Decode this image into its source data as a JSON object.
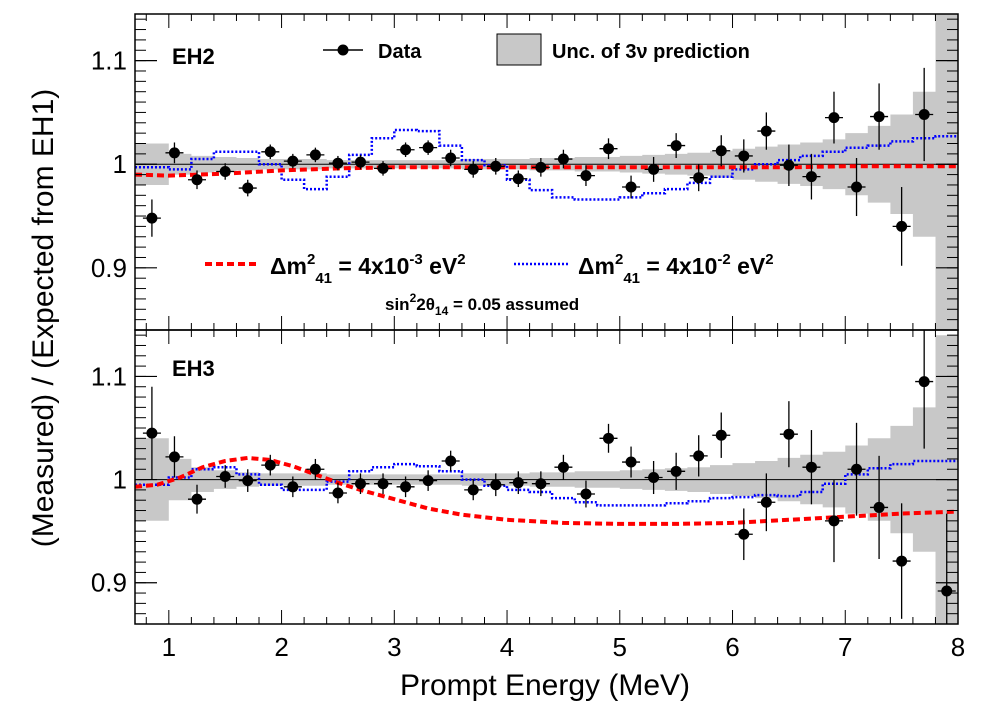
{
  "chart_data": {
    "type": "scatter",
    "xlabel": "Prompt Energy (MeV)",
    "ylabel": "(Measured) / (Expected from EH1)",
    "xlim": [
      0.7,
      8.0
    ],
    "x_ticks": [
      1,
      2,
      3,
      4,
      5,
      6,
      7,
      8
    ],
    "x_tick_labels": [
      "1",
      "2",
      "3",
      "4",
      "5",
      "6",
      "7",
      "8"
    ],
    "y_ticks": [
      0.9,
      1.0,
      1.1
    ],
    "y_tick_labels": [
      "0.9",
      "1",
      "1.1"
    ],
    "legend": {
      "data_label": "Data",
      "band_label": "Unc. of 3ν prediction",
      "red_prefix": "Δm",
      "red_sup": "2",
      "red_sub": "41",
      "red_mid": " = 4x10",
      "red_exp": "-3",
      "red_suffix": " eV",
      "red_suffix_sup": "2",
      "blue_prefix": "Δm",
      "blue_sup": "2",
      "blue_sub": "41",
      "blue_mid": " = 4x10",
      "blue_exp": "-2",
      "blue_suffix": " eV",
      "blue_suffix_sup": "2",
      "note_pre": "sin",
      "note_sup": "2",
      "note_mid": "2θ",
      "note_sub": "14",
      "note_post": " = 0.05 assumed"
    },
    "colors": {
      "data": "#000000",
      "band": "#c8c8c8",
      "red": "#ff0000",
      "blue": "#0000ff"
    },
    "panels": [
      {
        "label": "EH2",
        "ylim": [
          0.84,
          1.145
        ],
        "data": {
          "x": [
            0.85,
            1.05,
            1.25,
            1.5,
            1.7,
            1.9,
            2.1,
            2.3,
            2.5,
            2.7,
            2.9,
            3.1,
            3.3,
            3.5,
            3.7,
            3.9,
            4.1,
            4.3,
            4.5,
            4.7,
            4.9,
            5.1,
            5.3,
            5.5,
            5.7,
            5.9,
            6.1,
            6.3,
            6.5,
            6.7,
            6.9,
            7.1,
            7.3,
            7.5,
            7.7
          ],
          "y": [
            0.948,
            1.011,
            0.985,
            0.993,
            0.977,
            1.012,
            1.003,
            1.009,
            1.001,
            1.002,
            0.996,
            1.014,
            1.016,
            1.006,
            0.995,
            0.998,
            0.986,
            0.997,
            1.005,
            0.989,
            1.015,
            0.978,
            0.995,
            1.018,
            0.987,
            1.013,
            1.008,
            1.032,
            0.999,
            0.988,
            1.045,
            0.978,
            1.046,
            0.94,
            1.048
          ],
          "yerr": [
            0.018,
            0.01,
            0.009,
            0.008,
            0.008,
            0.007,
            0.007,
            0.007,
            0.007,
            0.007,
            0.007,
            0.007,
            0.007,
            0.008,
            0.008,
            0.008,
            0.008,
            0.009,
            0.009,
            0.01,
            0.01,
            0.011,
            0.012,
            0.012,
            0.013,
            0.015,
            0.016,
            0.018,
            0.02,
            0.022,
            0.025,
            0.028,
            0.032,
            0.038,
            0.045
          ]
        },
        "band": {
          "edges": [
            0.7,
            0.85,
            1.0,
            1.2,
            1.4,
            1.6,
            1.8,
            2.0,
            2.2,
            2.4,
            2.6,
            2.8,
            3.0,
            3.2,
            3.4,
            3.6,
            3.8,
            4.0,
            4.2,
            4.4,
            4.6,
            4.8,
            5.0,
            5.2,
            5.4,
            5.6,
            5.8,
            6.0,
            6.2,
            6.4,
            6.6,
            6.8,
            7.0,
            7.2,
            7.4,
            7.6,
            7.8,
            8.0
          ],
          "halfwidth": [
            0.02,
            0.02,
            0.01,
            0.008,
            0.007,
            0.006,
            0.005,
            0.005,
            0.005,
            0.004,
            0.004,
            0.004,
            0.004,
            0.004,
            0.004,
            0.005,
            0.005,
            0.005,
            0.006,
            0.006,
            0.007,
            0.007,
            0.008,
            0.009,
            0.01,
            0.011,
            0.013,
            0.015,
            0.017,
            0.019,
            0.021,
            0.024,
            0.03,
            0.037,
            0.048,
            0.07,
            0.16
          ]
        },
        "red_curve": {
          "x": [
            0.7,
            1.0,
            1.5,
            2.0,
            2.5,
            3.0,
            3.5,
            4.0,
            4.5,
            5.0,
            5.5,
            6.0,
            6.5,
            7.0,
            7.5,
            8.0
          ],
          "y": [
            0.99,
            0.989,
            0.991,
            0.994,
            0.996,
            0.997,
            0.997,
            0.997,
            0.997,
            0.997,
            0.997,
            0.997,
            0.997,
            0.998,
            0.998,
            0.998
          ]
        },
        "blue_curve": {
          "edges": [
            0.7,
            1.0,
            1.2,
            1.4,
            1.6,
            1.8,
            2.0,
            2.2,
            2.4,
            2.6,
            2.8,
            3.0,
            3.2,
            3.4,
            3.6,
            3.8,
            4.0,
            4.2,
            4.4,
            4.6,
            4.8,
            5.0,
            5.2,
            5.4,
            5.6,
            5.8,
            6.0,
            6.2,
            6.4,
            6.6,
            6.8,
            7.0,
            7.2,
            7.4,
            7.6,
            7.8,
            8.0
          ],
          "y": [
            0.997,
            0.995,
            1.005,
            1.012,
            1.012,
            1.0,
            0.985,
            0.976,
            0.988,
            1.009,
            1.025,
            1.033,
            1.032,
            1.018,
            1.004,
            0.999,
            0.985,
            0.975,
            0.968,
            0.966,
            0.966,
            0.968,
            0.972,
            0.976,
            0.982,
            0.988,
            0.995,
            1.0,
            1.004,
            1.008,
            1.012,
            1.016,
            1.018,
            1.022,
            1.025,
            1.027
          ]
        }
      },
      {
        "label": "EH3",
        "ylim": [
          0.86,
          1.145
        ],
        "data": {
          "x": [
            0.85,
            1.05,
            1.25,
            1.5,
            1.7,
            1.9,
            2.1,
            2.3,
            2.5,
            2.7,
            2.9,
            3.1,
            3.3,
            3.5,
            3.7,
            3.9,
            4.1,
            4.3,
            4.5,
            4.7,
            4.9,
            5.1,
            5.3,
            5.5,
            5.7,
            5.9,
            6.1,
            6.3,
            6.5,
            6.7,
            6.9,
            7.1,
            7.3,
            7.5,
            7.7,
            7.9
          ],
          "y": [
            1.045,
            1.022,
            0.981,
            1.003,
            0.999,
            1.014,
            0.993,
            1.01,
            0.987,
            0.996,
            0.996,
            0.993,
            0.999,
            1.018,
            0.99,
            0.995,
            0.997,
            0.996,
            1.012,
            0.986,
            1.04,
            1.017,
            1.002,
            1.008,
            1.023,
            1.043,
            0.947,
            0.978,
            1.044,
            1.012,
            0.96,
            1.01,
            0.973,
            0.921,
            1.095,
            0.892
          ],
          "yerr": [
            0.045,
            0.02,
            0.014,
            0.011,
            0.011,
            0.01,
            0.01,
            0.01,
            0.01,
            0.01,
            0.01,
            0.01,
            0.01,
            0.01,
            0.01,
            0.011,
            0.011,
            0.012,
            0.012,
            0.013,
            0.014,
            0.015,
            0.016,
            0.018,
            0.02,
            0.022,
            0.025,
            0.028,
            0.032,
            0.036,
            0.04,
            0.045,
            0.05,
            0.056,
            0.065,
            0.075
          ]
        },
        "band": {
          "edges": [
            0.7,
            0.85,
            1.0,
            1.2,
            1.4,
            1.6,
            1.8,
            2.0,
            2.2,
            2.4,
            2.6,
            2.8,
            3.0,
            3.2,
            3.4,
            3.6,
            3.8,
            4.0,
            4.2,
            4.4,
            4.6,
            4.8,
            5.0,
            5.2,
            5.4,
            5.6,
            5.8,
            6.0,
            6.2,
            6.4,
            6.6,
            6.8,
            7.0,
            7.2,
            7.4,
            7.6,
            7.8,
            8.0
          ],
          "halfwidth": [
            0.04,
            0.04,
            0.02,
            0.012,
            0.009,
            0.007,
            0.006,
            0.006,
            0.006,
            0.005,
            0.005,
            0.005,
            0.005,
            0.005,
            0.005,
            0.006,
            0.006,
            0.006,
            0.007,
            0.007,
            0.008,
            0.008,
            0.009,
            0.01,
            0.011,
            0.012,
            0.014,
            0.016,
            0.018,
            0.021,
            0.024,
            0.027,
            0.033,
            0.04,
            0.052,
            0.07,
            0.14
          ]
        },
        "red_curve": {
          "x": [
            0.7,
            0.9,
            1.1,
            1.3,
            1.5,
            1.7,
            1.9,
            2.1,
            2.3,
            2.5,
            2.7,
            3.0,
            3.3,
            3.6,
            4.0,
            4.5,
            5.0,
            5.5,
            6.0,
            6.5,
            7.0,
            7.5,
            8.0
          ],
          "y": [
            0.993,
            0.995,
            1.002,
            1.012,
            1.018,
            1.021,
            1.019,
            1.013,
            1.005,
            0.997,
            0.99,
            0.981,
            0.972,
            0.966,
            0.961,
            0.958,
            0.957,
            0.957,
            0.958,
            0.961,
            0.964,
            0.967,
            0.969
          ]
        },
        "blue_curve": {
          "edges": [
            0.7,
            1.0,
            1.2,
            1.4,
            1.6,
            1.8,
            2.0,
            2.2,
            2.4,
            2.6,
            2.8,
            3.0,
            3.2,
            3.4,
            3.6,
            3.8,
            4.0,
            4.2,
            4.4,
            4.6,
            4.8,
            5.0,
            5.2,
            5.4,
            5.6,
            5.8,
            6.0,
            6.2,
            6.4,
            6.6,
            6.8,
            7.0,
            7.2,
            7.4,
            7.6,
            7.8,
            8.0
          ],
          "y": [
            0.995,
            1.002,
            1.01,
            1.012,
            1.005,
            0.995,
            0.99,
            0.99,
            0.998,
            1.008,
            1.012,
            1.015,
            1.013,
            1.008,
            1.0,
            0.994,
            0.99,
            0.988,
            0.982,
            0.978,
            0.975,
            0.975,
            0.975,
            0.977,
            0.979,
            0.982,
            0.983,
            0.985,
            0.984,
            0.988,
            0.996,
            1.005,
            1.011,
            1.015,
            1.018,
            1.018
          ]
        }
      }
    ]
  }
}
